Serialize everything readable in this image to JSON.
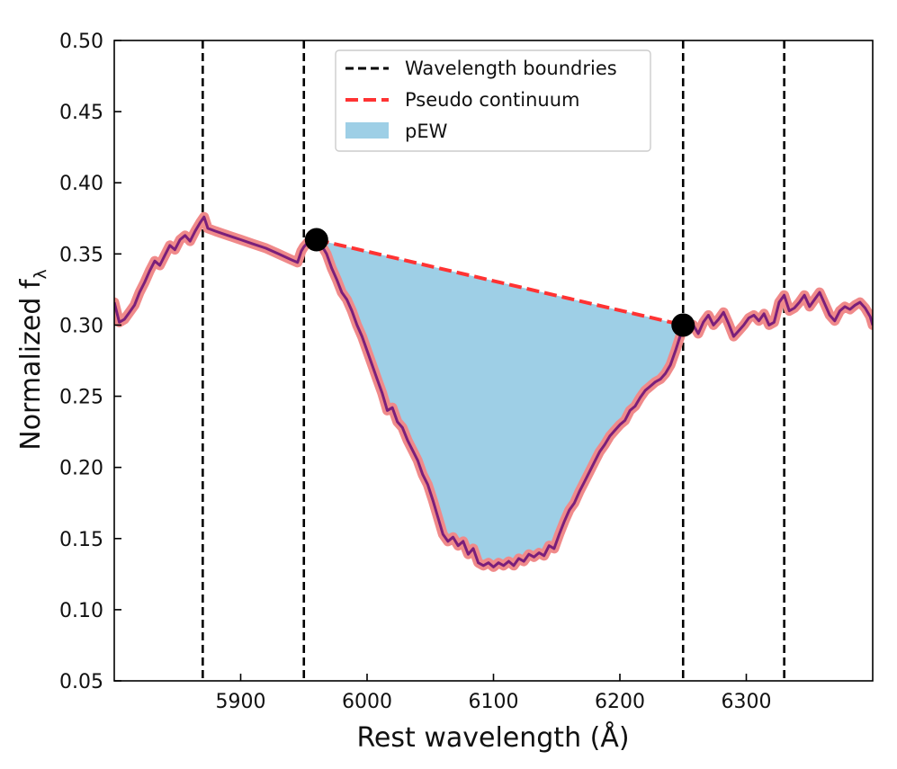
{
  "chart_data": {
    "type": "line",
    "xlabel": "Rest wavelength (Å)",
    "ylabel_main": "Normalized f",
    "ylabel_sub": "λ",
    "xlim": [
      5800,
      6400
    ],
    "ylim": [
      0.05,
      0.5
    ],
    "x_ticks": [
      5900,
      6000,
      6100,
      6200,
      6300
    ],
    "x_tick_labels": [
      "5900",
      "6000",
      "6100",
      "6200",
      "6300"
    ],
    "y_ticks": [
      0.05,
      0.1,
      0.15,
      0.2,
      0.25,
      0.3,
      0.35,
      0.4,
      0.45,
      0.5
    ],
    "y_tick_labels": [
      "0.05",
      "0.10",
      "0.15",
      "0.20",
      "0.25",
      "0.30",
      "0.35",
      "0.40",
      "0.45",
      "0.50"
    ],
    "legend": {
      "position": "upper-center",
      "entries": [
        {
          "label": "Wavelength boundries",
          "style": "black-dashed"
        },
        {
          "label": "Pseudo continuum",
          "style": "red-dashed"
        },
        {
          "label": "pEW",
          "style": "blue-fill"
        }
      ]
    },
    "colors": {
      "spectrum_halo": "#f08a8a",
      "spectrum": "#7a1f7a",
      "continuum": "#ff3333",
      "pew_fill": "#9ecfe6",
      "boundary": "#000000",
      "endpoint": "#000000"
    },
    "boundaries": [
      5870,
      5950,
      6250,
      6330
    ],
    "continuum": {
      "x": [
        5960,
        6250
      ],
      "y": [
        0.36,
        0.3
      ]
    },
    "endpoints": [
      {
        "x": 5960,
        "y": 0.36
      },
      {
        "x": 6250,
        "y": 0.3
      }
    ],
    "spectrum": {
      "x": [
        5800,
        5804,
        5808,
        5812,
        5816,
        5820,
        5824,
        5828,
        5832,
        5836,
        5840,
        5844,
        5848,
        5852,
        5856,
        5860,
        5864,
        5868,
        5871,
        5874,
        5880,
        5890,
        5900,
        5910,
        5920,
        5930,
        5940,
        5945,
        5948,
        5950,
        5953,
        5956,
        5960,
        5964,
        5968,
        5972,
        5976,
        5980,
        5984,
        5988,
        5992,
        5996,
        6000,
        6004,
        6008,
        6012,
        6016,
        6020,
        6024,
        6028,
        6032,
        6036,
        6040,
        6044,
        6048,
        6052,
        6056,
        6060,
        6064,
        6068,
        6072,
        6076,
        6080,
        6084,
        6088,
        6092,
        6096,
        6100,
        6104,
        6108,
        6112,
        6116,
        6120,
        6124,
        6128,
        6132,
        6136,
        6140,
        6144,
        6148,
        6152,
        6156,
        6160,
        6164,
        6168,
        6172,
        6176,
        6180,
        6184,
        6188,
        6192,
        6196,
        6200,
        6204,
        6208,
        6212,
        6216,
        6220,
        6224,
        6228,
        6232,
        6236,
        6240,
        6244,
        6248,
        6250,
        6254,
        6258,
        6262,
        6266,
        6270,
        6274,
        6278,
        6282,
        6286,
        6290,
        6294,
        6298,
        6302,
        6306,
        6310,
        6314,
        6318,
        6322,
        6326,
        6330,
        6334,
        6338,
        6342,
        6346,
        6350,
        6354,
        6358,
        6362,
        6366,
        6370,
        6374,
        6378,
        6382,
        6386,
        6390,
        6394,
        6398,
        6400
      ],
      "y": [
        0.316,
        0.302,
        0.304,
        0.309,
        0.314,
        0.323,
        0.33,
        0.338,
        0.345,
        0.342,
        0.349,
        0.356,
        0.353,
        0.36,
        0.363,
        0.359,
        0.366,
        0.372,
        0.376,
        0.368,
        0.366,
        0.363,
        0.36,
        0.357,
        0.354,
        0.35,
        0.346,
        0.344,
        0.352,
        0.355,
        0.358,
        0.361,
        0.36,
        0.356,
        0.35,
        0.34,
        0.332,
        0.323,
        0.318,
        0.31,
        0.3,
        0.292,
        0.282,
        0.272,
        0.262,
        0.252,
        0.24,
        0.242,
        0.232,
        0.228,
        0.219,
        0.212,
        0.205,
        0.195,
        0.188,
        0.177,
        0.165,
        0.153,
        0.148,
        0.151,
        0.145,
        0.148,
        0.139,
        0.143,
        0.133,
        0.131,
        0.133,
        0.13,
        0.133,
        0.131,
        0.134,
        0.131,
        0.136,
        0.134,
        0.139,
        0.137,
        0.14,
        0.138,
        0.145,
        0.143,
        0.153,
        0.162,
        0.17,
        0.175,
        0.183,
        0.19,
        0.197,
        0.204,
        0.211,
        0.216,
        0.222,
        0.226,
        0.23,
        0.233,
        0.24,
        0.243,
        0.249,
        0.254,
        0.257,
        0.26,
        0.262,
        0.266,
        0.272,
        0.282,
        0.293,
        0.3,
        0.297,
        0.3,
        0.294,
        0.302,
        0.307,
        0.3,
        0.304,
        0.309,
        0.301,
        0.292,
        0.296,
        0.3,
        0.305,
        0.307,
        0.303,
        0.308,
        0.3,
        0.302,
        0.316,
        0.321,
        0.31,
        0.312,
        0.316,
        0.321,
        0.313,
        0.318,
        0.323,
        0.315,
        0.307,
        0.303,
        0.31,
        0.313,
        0.311,
        0.314,
        0.316,
        0.312,
        0.306,
        0.3
      ]
    }
  }
}
